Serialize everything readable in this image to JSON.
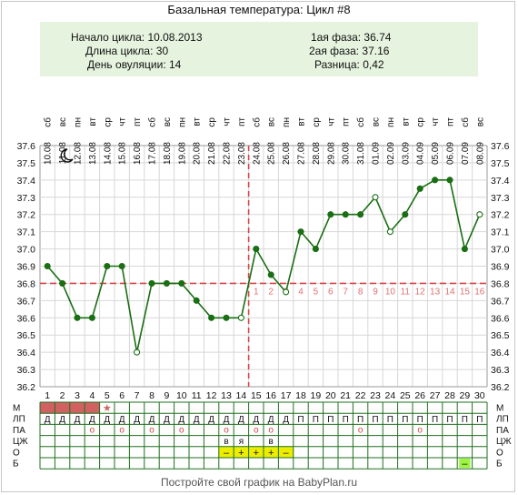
{
  "title": "Базальная температура: Цикл #8",
  "summary": {
    "cycle_start": "Начало цикла: 10.08.2013",
    "cycle_length": "Длина цикла: 30",
    "ovulation_day": "День овуляции: 14",
    "phase1": "1ая фаза: 36.74",
    "phase2": "2ая фаза: 37.16",
    "difference": "Разница: 0,42"
  },
  "footer": "Постройте свой график на BabyPlan.ru",
  "colors": {
    "line": "#1a6e13",
    "cover": "#d64545",
    "grid": "#d7d7d7",
    "info_bg": "#e6f3df",
    "menstr": "#d16161",
    "yellow": "#eded00",
    "green": "#9cf53f"
  },
  "chart_data": {
    "type": "line",
    "x": [
      1,
      2,
      3,
      4,
      5,
      6,
      7,
      8,
      9,
      10,
      11,
      12,
      13,
      14,
      15,
      16,
      17,
      18,
      19,
      20,
      21,
      22,
      23,
      24,
      25,
      26,
      27,
      28,
      29,
      30
    ],
    "weekdays": [
      "сб",
      "вс",
      "пн",
      "вт",
      "ср",
      "чт",
      "пт",
      "сб",
      "вс",
      "пн",
      "вт",
      "ср",
      "чт",
      "пт",
      "сб",
      "вс",
      "пн",
      "вт",
      "ср",
      "чт",
      "пт",
      "сб",
      "вс",
      "пн",
      "вт",
      "ср",
      "чт",
      "пт",
      "сб",
      "вс"
    ],
    "dates": [
      "10.08",
      "11.08",
      "12.08",
      "13.08",
      "14.08",
      "15.08",
      "16.08",
      "17.08",
      "18.08",
      "19.08",
      "20.08",
      "21.08",
      "22.08",
      "23.08",
      "24.08",
      "25.08",
      "26.08",
      "27.08",
      "28.08",
      "29.08",
      "30.08",
      "31.08",
      "01.09",
      "02.09",
      "03.09",
      "04.09",
      "05.09",
      "06.09",
      "07.09",
      "08.09"
    ],
    "series": [
      {
        "values": [
          36.9,
          36.8,
          36.6,
          36.6,
          36.9,
          36.9,
          36.4,
          36.8,
          36.8,
          36.8,
          36.7,
          36.6,
          36.6,
          36.6,
          37.0,
          36.85,
          36.75,
          37.1,
          37.0,
          37.2,
          37.2,
          37.2,
          37.3,
          37.1,
          37.2,
          37.35,
          37.4,
          37.4,
          37.0,
          37.2
        ]
      }
    ],
    "open_points": [
      7,
      14,
      17,
      23,
      24,
      30
    ],
    "ylim": [
      36.2,
      37.6
    ],
    "yticks": [
      "36.2",
      "36.3",
      "36.4",
      "36.5",
      "36.6",
      "36.7",
      "36.8",
      "36.9",
      "37.0",
      "37.1",
      "37.2",
      "37.3",
      "37.4",
      "37.5",
      "37.6"
    ],
    "coverline": 36.8,
    "ovulation_day": 14,
    "post_ovulation_labels": [
      "1",
      "2",
      "3",
      "4",
      "5",
      "6",
      "7",
      "8",
      "9",
      "10",
      "11",
      "12",
      "13",
      "14",
      "15",
      "16"
    ],
    "grid": true
  },
  "table": {
    "row_labels": [
      "М",
      "ЛП",
      "ПА",
      "ЦЖ",
      "О",
      "Б"
    ],
    "m_days": [
      1,
      2,
      3,
      4
    ],
    "m_star": {
      "day": 5,
      "symbol": "★"
    },
    "lp": [
      "Д",
      "Д",
      "Д",
      "Д",
      "Д",
      "Д",
      "Д",
      "Д",
      "Д",
      "Д",
      "Д",
      "Д",
      "Д",
      "Д",
      "Д",
      "Д",
      "Д",
      "П",
      "П",
      "П",
      "П",
      "П",
      "П",
      "П",
      "П",
      "П",
      "П",
      "П",
      "П",
      "П"
    ],
    "pa": [
      {
        "day": 4,
        "symbol": "о"
      },
      {
        "day": 6,
        "symbol": "о"
      },
      {
        "day": 8,
        "symbol": "о"
      },
      {
        "day": 10,
        "symbol": "о"
      },
      {
        "day": 13,
        "symbol": "о"
      },
      {
        "day": 15,
        "symbol": "о"
      },
      {
        "day": 16,
        "symbol": "о"
      },
      {
        "day": 22,
        "symbol": "о"
      },
      {
        "day": 26,
        "symbol": "о"
      }
    ],
    "czh": [
      {
        "day": 13,
        "symbol": "в"
      },
      {
        "day": 14,
        "symbol": "я"
      },
      {
        "day": 16,
        "symbol": "в"
      }
    ],
    "o": [
      {
        "day": 13,
        "symbol": "–"
      },
      {
        "day": 14,
        "symbol": "+"
      },
      {
        "day": 15,
        "symbol": "+"
      },
      {
        "day": 16,
        "symbol": "+"
      },
      {
        "day": 17,
        "symbol": "–"
      }
    ],
    "b": [
      {
        "day": 29,
        "symbol": "–"
      }
    ]
  }
}
